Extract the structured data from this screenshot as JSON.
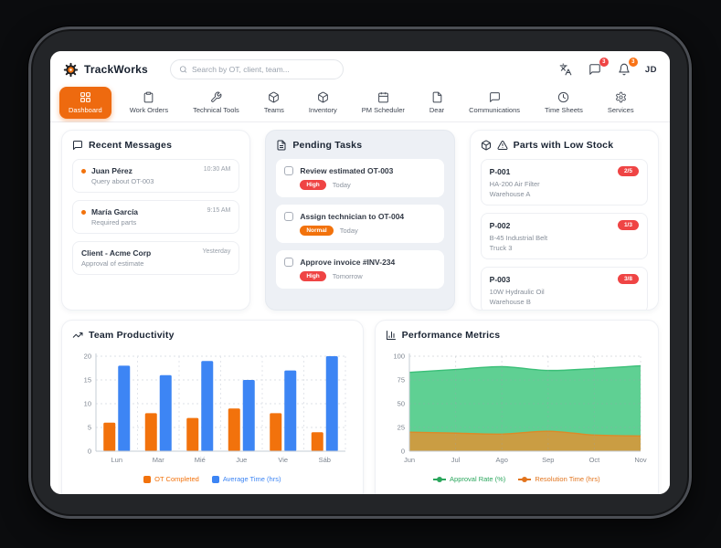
{
  "header": {
    "app_name": "TrackWorks",
    "search_placeholder": "Search by OT, client, team...",
    "chat_badge": "3",
    "bell_badge": "3",
    "user_initials": "JD"
  },
  "nav": {
    "items": [
      {
        "label": "Dashboard",
        "active": true
      },
      {
        "label": "Work Orders"
      },
      {
        "label": "Technical Tools"
      },
      {
        "label": "Teams"
      },
      {
        "label": "Inventory"
      },
      {
        "label": "PM Scheduler"
      },
      {
        "label": "Dear"
      },
      {
        "label": "Communications"
      },
      {
        "label": "Time Sheets"
      },
      {
        "label": "Services"
      }
    ]
  },
  "recent_messages": {
    "title": "Recent Messages",
    "items": [
      {
        "name": "Juan Pérez",
        "subtitle": "Query about OT-003",
        "time": "10:30 AM",
        "unread": true
      },
      {
        "name": "María García",
        "subtitle": "Required parts",
        "time": "9:15 AM",
        "unread": true
      },
      {
        "name": "Client - Acme Corp",
        "subtitle": "Approval of estimate",
        "time": "Yesterday",
        "unread": false
      }
    ]
  },
  "pending_tasks": {
    "title": "Pending Tasks",
    "items": [
      {
        "title": "Review estimated OT-003",
        "priority": "High",
        "due": "Today"
      },
      {
        "title": "Assign technician to OT-004",
        "priority": "Normal",
        "due": "Today"
      },
      {
        "title": "Approve invoice #INV-234",
        "priority": "High",
        "due": "Tomorrow"
      }
    ]
  },
  "low_stock": {
    "title": "Parts with Low Stock",
    "items": [
      {
        "code": "P-001",
        "name": "HA-200 Air Filter",
        "location": "Warehouse A",
        "stock": "2/5"
      },
      {
        "code": "P-002",
        "name": "B-45 Industrial Belt",
        "location": "Truck 3",
        "stock": "1/3"
      },
      {
        "code": "P-003",
        "name": "10W Hydraulic Oil",
        "location": "Warehouse B",
        "stock": "3/8"
      }
    ]
  },
  "chart_data": [
    {
      "id": "team_productivity",
      "type": "bar",
      "title": "Team Productivity",
      "categories": [
        "Lun",
        "Mar",
        "Mié",
        "Jue",
        "Vie",
        "Sáb"
      ],
      "series": [
        {
          "name": "OT Completed",
          "color": "#f2720c",
          "legend_color": "#f2720c",
          "values": [
            6,
            8,
            7,
            9,
            8,
            4
          ]
        },
        {
          "name": "Average Time (hrs)",
          "color": "#3d85f4",
          "legend_color": "#3d85f4",
          "values": [
            18,
            16,
            19,
            15,
            17,
            20
          ]
        }
      ],
      "xlabel": "",
      "ylabel": "",
      "ylim": [
        0,
        20
      ],
      "yticks": [
        0,
        5,
        10,
        15,
        20
      ],
      "grid": true,
      "legend_position": "bottom"
    },
    {
      "id": "performance_metrics",
      "type": "area",
      "title": "Performance Metrics",
      "categories": [
        "Jun",
        "Jul",
        "Ago",
        "Sep",
        "Oct",
        "Nov"
      ],
      "series": [
        {
          "name": "Approval Rate (%)",
          "color": "#4ecb87",
          "line_color": "#3bbf78",
          "legend_color": "#2aa65c",
          "fill_opacity": 0.9,
          "values": [
            83,
            86,
            89,
            85,
            87,
            90
          ]
        },
        {
          "name": "Resolution Time (hrs)",
          "color": "#d09a3e",
          "line_color": "#dd8a28",
          "legend_color": "#e2741d",
          "fill_opacity": 0.95,
          "values": [
            20,
            19,
            18,
            21,
            17,
            16
          ]
        }
      ],
      "xlabel": "",
      "ylabel": "",
      "ylim": [
        0,
        100
      ],
      "yticks": [
        0,
        25,
        50,
        75,
        100
      ],
      "grid": true,
      "legend_position": "bottom"
    }
  ],
  "colors": {
    "accent_orange": "#ee6a0f",
    "danger_red": "#ef4444",
    "warning_orange": "#f97316",
    "bar_orange": "#f2720c",
    "bar_blue": "#3d85f4",
    "area_green": "#4ecb87",
    "area_tan": "#d09a3e"
  }
}
